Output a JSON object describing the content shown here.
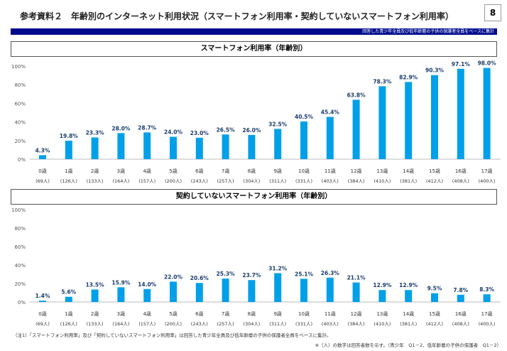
{
  "header": {
    "title": "参考資料２　年齢別のインターネット利用状況（スマートフォン利用率・契約していないスマートフォン利用率）",
    "page_number": "8",
    "base_note": "回答した青少年全員及び低年齢層の子供の保護者全員をベースに集計"
  },
  "chart_data": [
    {
      "type": "bar",
      "title": "スマートフォン利用率（年齢別）",
      "ylim": [
        0,
        100
      ],
      "yticks": [
        "0%",
        "20%",
        "40%",
        "60%",
        "80%",
        "100%"
      ],
      "grid": false,
      "color": "#00a0e9",
      "categories": [
        "0歳",
        "1歳",
        "2歳",
        "3歳",
        "4歳",
        "5歳",
        "6歳",
        "7歳",
        "8歳",
        "9歳",
        "10歳",
        "11歳",
        "12歳",
        "13歳",
        "14歳",
        "15歳",
        "16歳",
        "17歳"
      ],
      "counts": [
        "(69人)",
        "(126人)",
        "(133人)",
        "(164人)",
        "(157人)",
        "(200人)",
        "(243人)",
        "(257人)",
        "(304人)",
        "(311人)",
        "(331人)",
        "(403人)",
        "(384人)",
        "(410人)",
        "(381人)",
        "(412人)",
        "(408人)",
        "(400人)"
      ],
      "values": [
        4.3,
        19.8,
        23.3,
        28.0,
        28.7,
        24.0,
        23.0,
        26.5,
        26.0,
        32.5,
        40.5,
        45.4,
        63.8,
        78.3,
        82.9,
        90.3,
        97.1,
        98.0
      ]
    },
    {
      "type": "bar",
      "title": "契約していないスマートフォン利用率（年齢別）",
      "ylim": [
        0,
        100
      ],
      "yticks": [
        "0%",
        "20%",
        "40%",
        "60%",
        "80%",
        "100%"
      ],
      "grid": false,
      "color": "#00a0e9",
      "categories": [
        "0歳",
        "1歳",
        "2歳",
        "3歳",
        "4歳",
        "5歳",
        "6歳",
        "7歳",
        "8歳",
        "9歳",
        "10歳",
        "11歳",
        "12歳",
        "13歳",
        "14歳",
        "15歳",
        "16歳",
        "17歳"
      ],
      "counts": [
        "(69人)",
        "(126人)",
        "(133人)",
        "(164人)",
        "(157人)",
        "(200人)",
        "(243人)",
        "(257人)",
        "(304人)",
        "(311人)",
        "(331人)",
        "(403人)",
        "(384人)",
        "(410人)",
        "(381人)",
        "(412人)",
        "(408人)",
        "(400人)"
      ],
      "values": [
        1.4,
        5.6,
        13.5,
        15.9,
        14.0,
        22.0,
        20.6,
        25.3,
        23.7,
        31.2,
        25.1,
        26.3,
        21.1,
        12.9,
        12.9,
        9.5,
        7.8,
        8.3
      ]
    }
  ],
  "notes": {
    "note1": "（注1）「スマートフォン利用率」及び「契約していないスマートフォン利用率」は回答した青少年全員及び低年齢層の子供の保護者全員をベースに集計。",
    "note2": "※（人）の数字は回答者数を示す。（青少年　Q1－2、低年齢層の子供の保護者　Q1－2）"
  }
}
